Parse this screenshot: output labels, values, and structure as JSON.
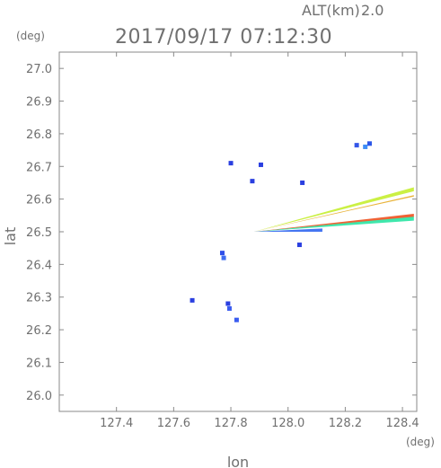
{
  "header": {
    "altitude_label": "ALT(km)",
    "altitude_value": "2.0",
    "datetime": "2017/09/17 07:12:30"
  },
  "chart_data": {
    "type": "heatmap",
    "xlabel": "lon",
    "ylabel": "lat",
    "x_unit": "(deg)",
    "y_unit": "(deg)",
    "xlim": [
      127.2,
      128.45
    ],
    "ylim": [
      25.95,
      27.05
    ],
    "x_ticks": [
      "127.4",
      "127.6",
      "127.8",
      "128.0",
      "128.2",
      "128.4"
    ],
    "x_tick_values": [
      127.4,
      127.6,
      127.8,
      128.0,
      128.2,
      128.4
    ],
    "y_ticks": [
      "26.0",
      "26.1",
      "26.2",
      "26.3",
      "26.4",
      "26.5",
      "26.6",
      "26.7",
      "26.8",
      "26.9",
      "27.0"
    ],
    "y_tick_values": [
      26.0,
      26.1,
      26.2,
      26.3,
      26.4,
      26.5,
      26.6,
      26.7,
      26.8,
      26.9,
      27.0
    ],
    "grid": false,
    "echoes": [
      {
        "lon": 127.8,
        "lat": 26.71,
        "color": "#2a3fe0"
      },
      {
        "lon": 127.905,
        "lat": 26.705,
        "color": "#2a3fe0"
      },
      {
        "lon": 127.875,
        "lat": 26.655,
        "color": "#2a3fe0"
      },
      {
        "lon": 127.77,
        "lat": 26.435,
        "color": "#2f4fe8"
      },
      {
        "lon": 127.775,
        "lat": 26.42,
        "color": "#3f6cf0"
      },
      {
        "lon": 127.79,
        "lat": 26.28,
        "color": "#2a3fe0"
      },
      {
        "lon": 127.795,
        "lat": 26.265,
        "color": "#3a5cf0"
      },
      {
        "lon": 127.82,
        "lat": 26.23,
        "color": "#3a5cf0"
      },
      {
        "lon": 127.665,
        "lat": 26.29,
        "color": "#2a3fe0"
      },
      {
        "lon": 128.24,
        "lat": 26.765,
        "color": "#3355e8"
      },
      {
        "lon": 128.27,
        "lat": 26.76,
        "color": "#3f8df5"
      },
      {
        "lon": 128.285,
        "lat": 26.77,
        "color": "#2a55e8"
      },
      {
        "lon": 128.05,
        "lat": 26.65,
        "color": "#2a3fe0"
      },
      {
        "lon": 128.04,
        "lat": 26.46,
        "color": "#2a3fe0"
      }
    ],
    "beams": [
      {
        "from": [
          127.88,
          26.5
        ],
        "to": [
          128.44,
          26.63
        ],
        "width": 0.012,
        "color": "#c8ef3a"
      },
      {
        "from": [
          127.88,
          26.5
        ],
        "to": [
          128.44,
          26.61
        ],
        "width": 0.004,
        "color": "#e8b030"
      },
      {
        "from": [
          127.88,
          26.5
        ],
        "to": [
          128.44,
          26.55
        ],
        "width": 0.01,
        "color": "#ef5a2a"
      },
      {
        "from": [
          127.88,
          26.5
        ],
        "to": [
          128.44,
          26.54
        ],
        "width": 0.012,
        "color": "#35e6a8"
      },
      {
        "from": [
          127.88,
          26.5
        ],
        "to": [
          128.12,
          26.505
        ],
        "width": 0.01,
        "color": "#3a6ef0"
      }
    ]
  }
}
